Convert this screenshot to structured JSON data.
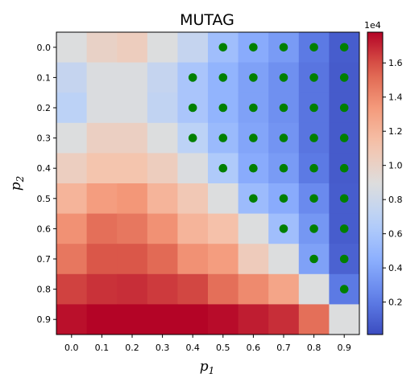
{
  "chart_data": {
    "type": "heatmap",
    "title": "MUTAG",
    "xlabel": {
      "base": "p",
      "sub": "1"
    },
    "ylabel": {
      "base": "p",
      "sub": "2"
    },
    "x_ticks": [
      "0.0",
      "0.1",
      "0.2",
      "0.3",
      "0.4",
      "0.5",
      "0.6",
      "0.7",
      "0.8",
      "0.9"
    ],
    "y_ticks": [
      "0.0",
      "0.1",
      "0.2",
      "0.3",
      "0.4",
      "0.5",
      "0.6",
      "0.7",
      "0.8",
      "0.9"
    ],
    "colorscale": "coolwarm",
    "colorbar": {
      "multiplier_label": "1e4",
      "vmin": 100,
      "vmax": 17800,
      "tick_values": [
        2000,
        4000,
        6000,
        8000,
        10000,
        12000,
        14000,
        16000
      ],
      "tick_labels": [
        "0.2",
        "0.4",
        "0.6",
        "0.8",
        "1.0",
        "1.2",
        "1.4",
        "1.6"
      ]
    },
    "values": [
      [
        8900,
        10000,
        10400,
        8900,
        7500,
        5500,
        4300,
        3500,
        2000,
        800
      ],
      [
        7500,
        8800,
        8800,
        7500,
        6000,
        4800,
        3800,
        3000,
        1800,
        700
      ],
      [
        7000,
        8800,
        8800,
        7300,
        6000,
        4800,
        3800,
        3000,
        1800,
        700
      ],
      [
        8900,
        10200,
        10200,
        8900,
        7000,
        5200,
        4000,
        3200,
        1800,
        700
      ],
      [
        10300,
        11100,
        11100,
        10400,
        8800,
        6300,
        4300,
        3500,
        2000,
        700
      ],
      [
        12000,
        13200,
        13500,
        12000,
        10800,
        8900,
        5300,
        4300,
        2700,
        800
      ],
      [
        13700,
        15000,
        14700,
        13700,
        12000,
        11300,
        8900,
        5500,
        3300,
        800
      ],
      [
        14700,
        15800,
        15800,
        15200,
        13700,
        13200,
        10500,
        8900,
        3800,
        1000
      ],
      [
        16300,
        16700,
        16800,
        16500,
        16200,
        15000,
        14000,
        12800,
        8900,
        2000
      ],
      [
        17500,
        17800,
        17800,
        17800,
        17800,
        17600,
        17200,
        16800,
        15000,
        8900
      ]
    ],
    "markers": {
      "color": "#008000",
      "points": [
        [
          0.5,
          0.0
        ],
        [
          0.6,
          0.0
        ],
        [
          0.7,
          0.0
        ],
        [
          0.8,
          0.0
        ],
        [
          0.9,
          0.0
        ],
        [
          0.4,
          0.1
        ],
        [
          0.5,
          0.1
        ],
        [
          0.6,
          0.1
        ],
        [
          0.7,
          0.1
        ],
        [
          0.8,
          0.1
        ],
        [
          0.9,
          0.1
        ],
        [
          0.4,
          0.2
        ],
        [
          0.5,
          0.2
        ],
        [
          0.6,
          0.2
        ],
        [
          0.7,
          0.2
        ],
        [
          0.8,
          0.2
        ],
        [
          0.9,
          0.2
        ],
        [
          0.4,
          0.3
        ],
        [
          0.5,
          0.3
        ],
        [
          0.6,
          0.3
        ],
        [
          0.7,
          0.3
        ],
        [
          0.8,
          0.3
        ],
        [
          0.9,
          0.3
        ],
        [
          0.5,
          0.4
        ],
        [
          0.6,
          0.4
        ],
        [
          0.7,
          0.4
        ],
        [
          0.8,
          0.4
        ],
        [
          0.9,
          0.4
        ],
        [
          0.6,
          0.5
        ],
        [
          0.7,
          0.5
        ],
        [
          0.8,
          0.5
        ],
        [
          0.9,
          0.5
        ],
        [
          0.7,
          0.6
        ],
        [
          0.8,
          0.6
        ],
        [
          0.9,
          0.6
        ],
        [
          0.8,
          0.7
        ],
        [
          0.9,
          0.7
        ],
        [
          0.9,
          0.8
        ]
      ]
    }
  }
}
